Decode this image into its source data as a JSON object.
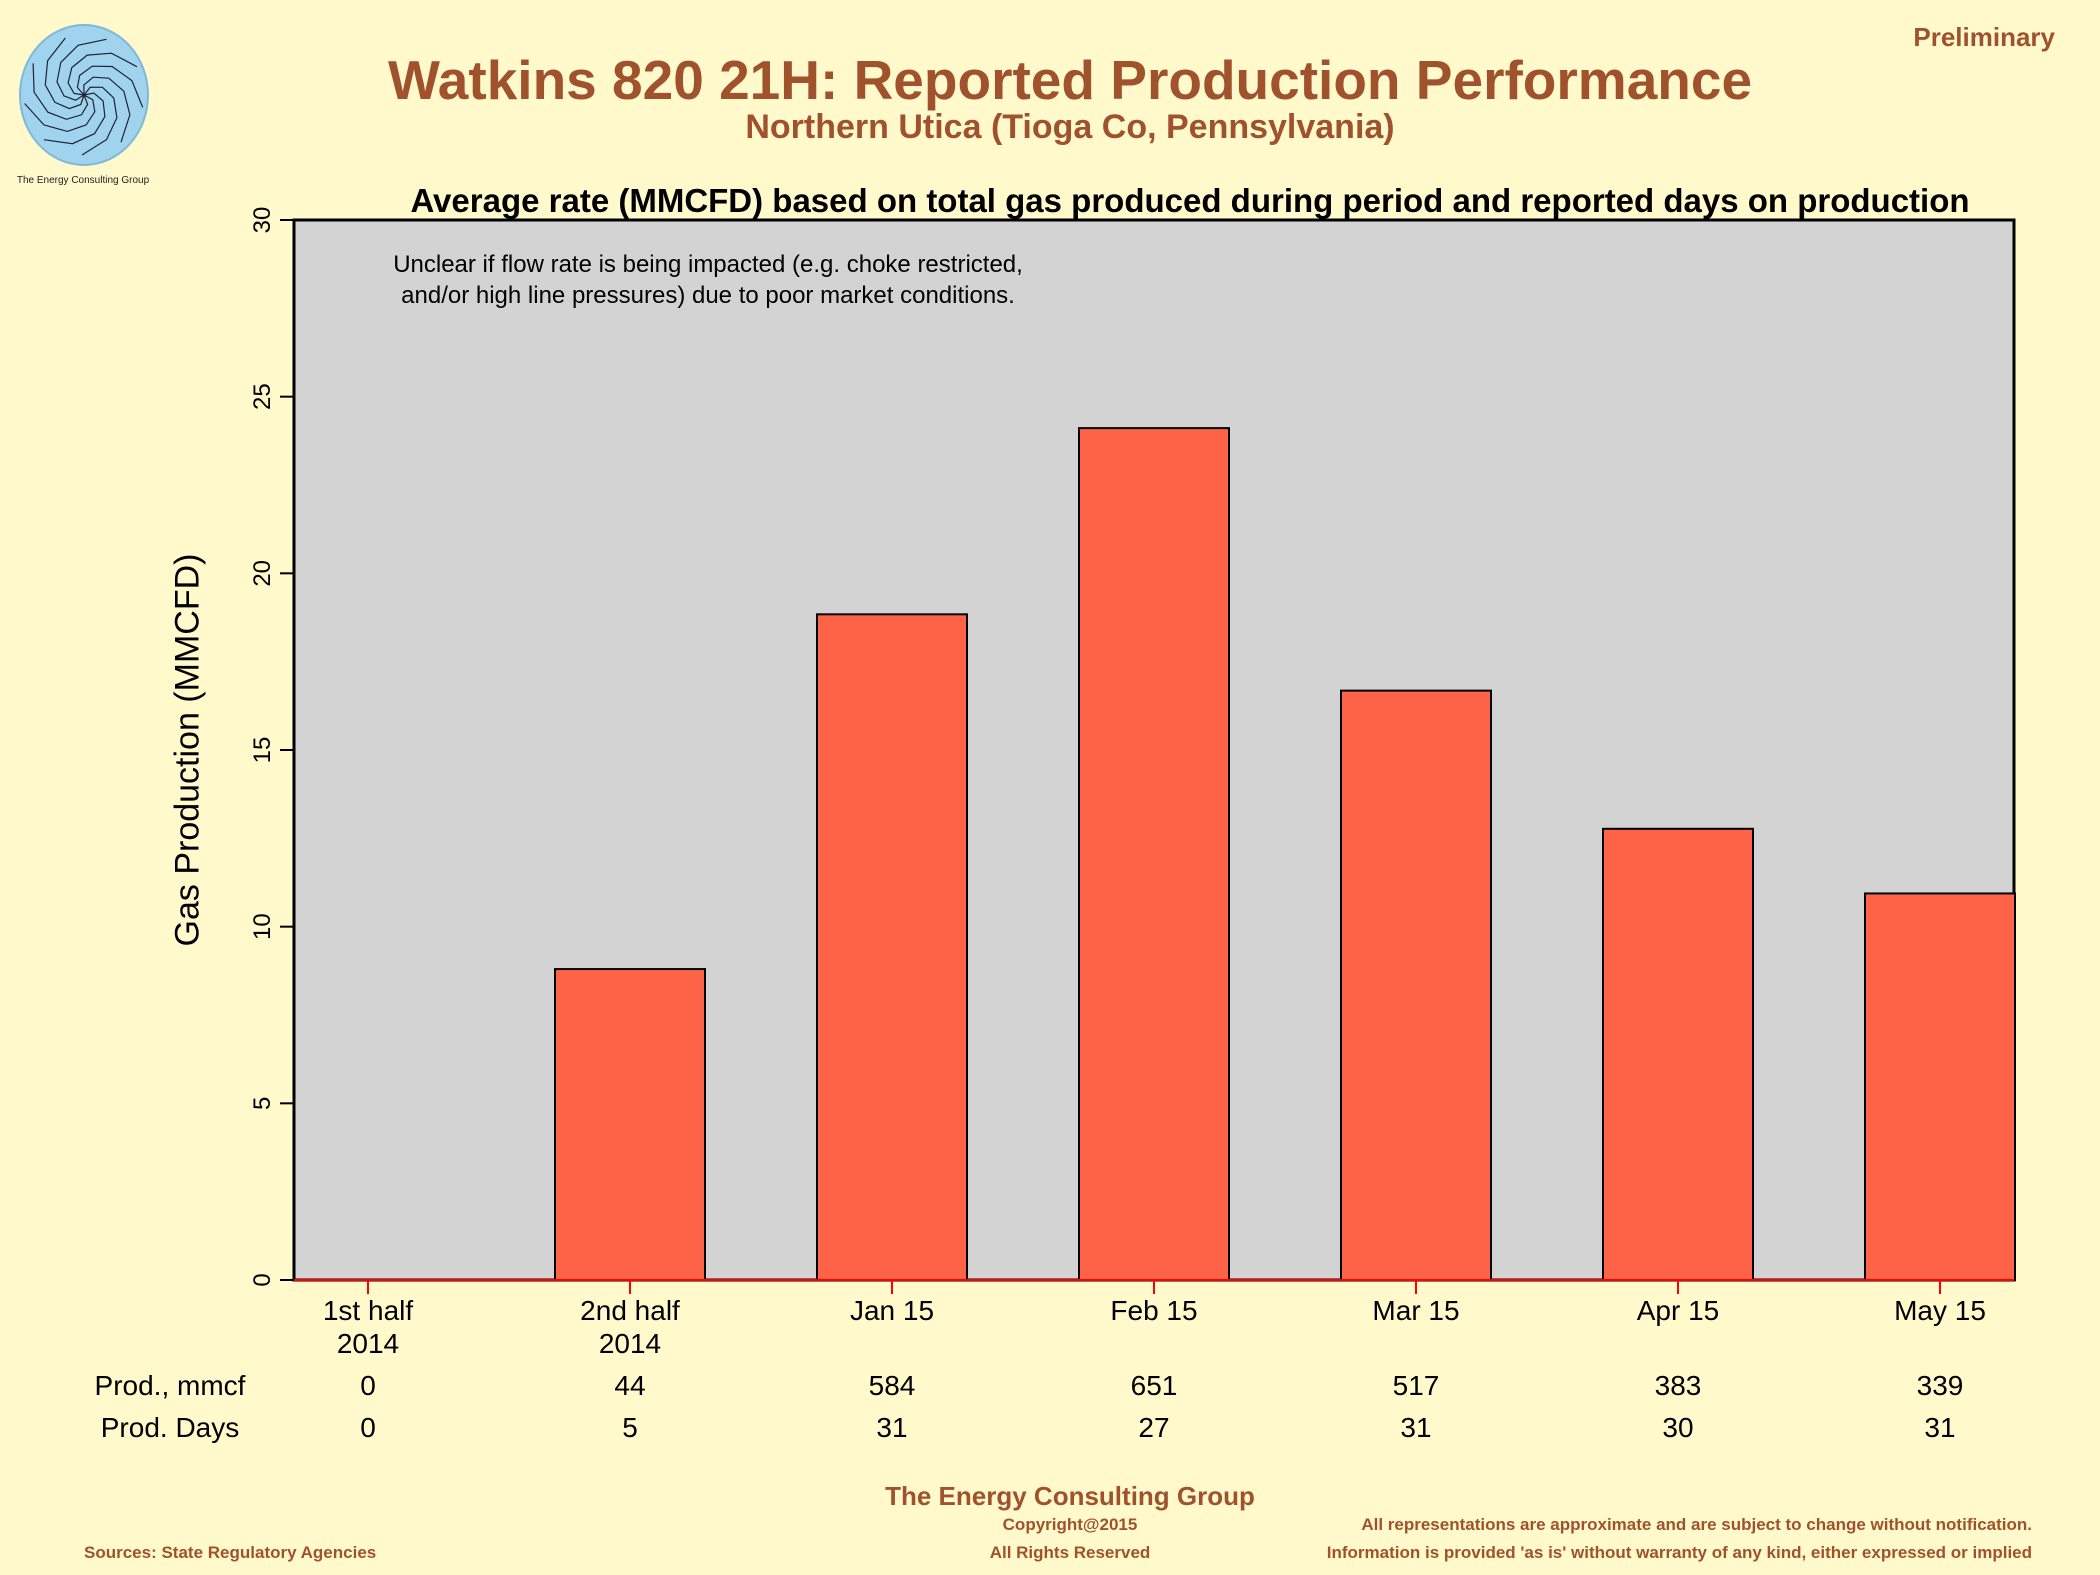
{
  "header": {
    "title": "Watkins 820 21H: Reported Production Performance",
    "subtitle": "Northern Utica (Tioga Co, Pennsylvania)",
    "status": "Preliminary",
    "logo_text": "The Energy Consulting Group"
  },
  "chart_data": {
    "type": "bar",
    "title": "Average rate (MMCFD) based on total gas produced during period and reported days on production",
    "ylabel": "Gas Production (MMCFD)",
    "xlabel": "",
    "ylim": [
      0,
      30
    ],
    "yticks": [
      "0",
      "5",
      "10",
      "15",
      "20",
      "25",
      "30"
    ],
    "categories": [
      [
        "1st half",
        "2014"
      ],
      [
        "2nd half",
        "2014"
      ],
      [
        "Jan 15"
      ],
      [
        "Feb 15"
      ],
      [
        "Mar 15"
      ],
      [
        "Apr 15"
      ],
      [
        "May 15"
      ]
    ],
    "values": [
      0,
      8.8,
      18.84,
      24.11,
      16.68,
      12.77,
      10.94
    ],
    "annotation": [
      "Unclear if flow rate is being impacted (e.g. choke restricted,",
      "and/or high line pressures) due to poor market conditions."
    ],
    "grid": false,
    "colors": {
      "bar": "#ff6347",
      "plot_bg": "#d3d3d3",
      "tick": "#ff0000"
    }
  },
  "table": {
    "rows": [
      {
        "label": "Prod., mmcf",
        "values": [
          "0",
          "44",
          "584",
          "651",
          "517",
          "383",
          "339"
        ]
      },
      {
        "label": "Prod. Days",
        "values": [
          "0",
          "5",
          "31",
          "27",
          "31",
          "30",
          "31"
        ]
      }
    ]
  },
  "footer": {
    "company": "The Energy Consulting Group",
    "copyright": "Copyright@2015",
    "rights": "All Rights Reserved",
    "sources": "Sources: State Regulatory Agencies",
    "disclaimer1": "All representations are approximate and are subject to change without notification.",
    "disclaimer2": "Information is provided 'as is' without warranty of any kind, either expressed or implied"
  }
}
